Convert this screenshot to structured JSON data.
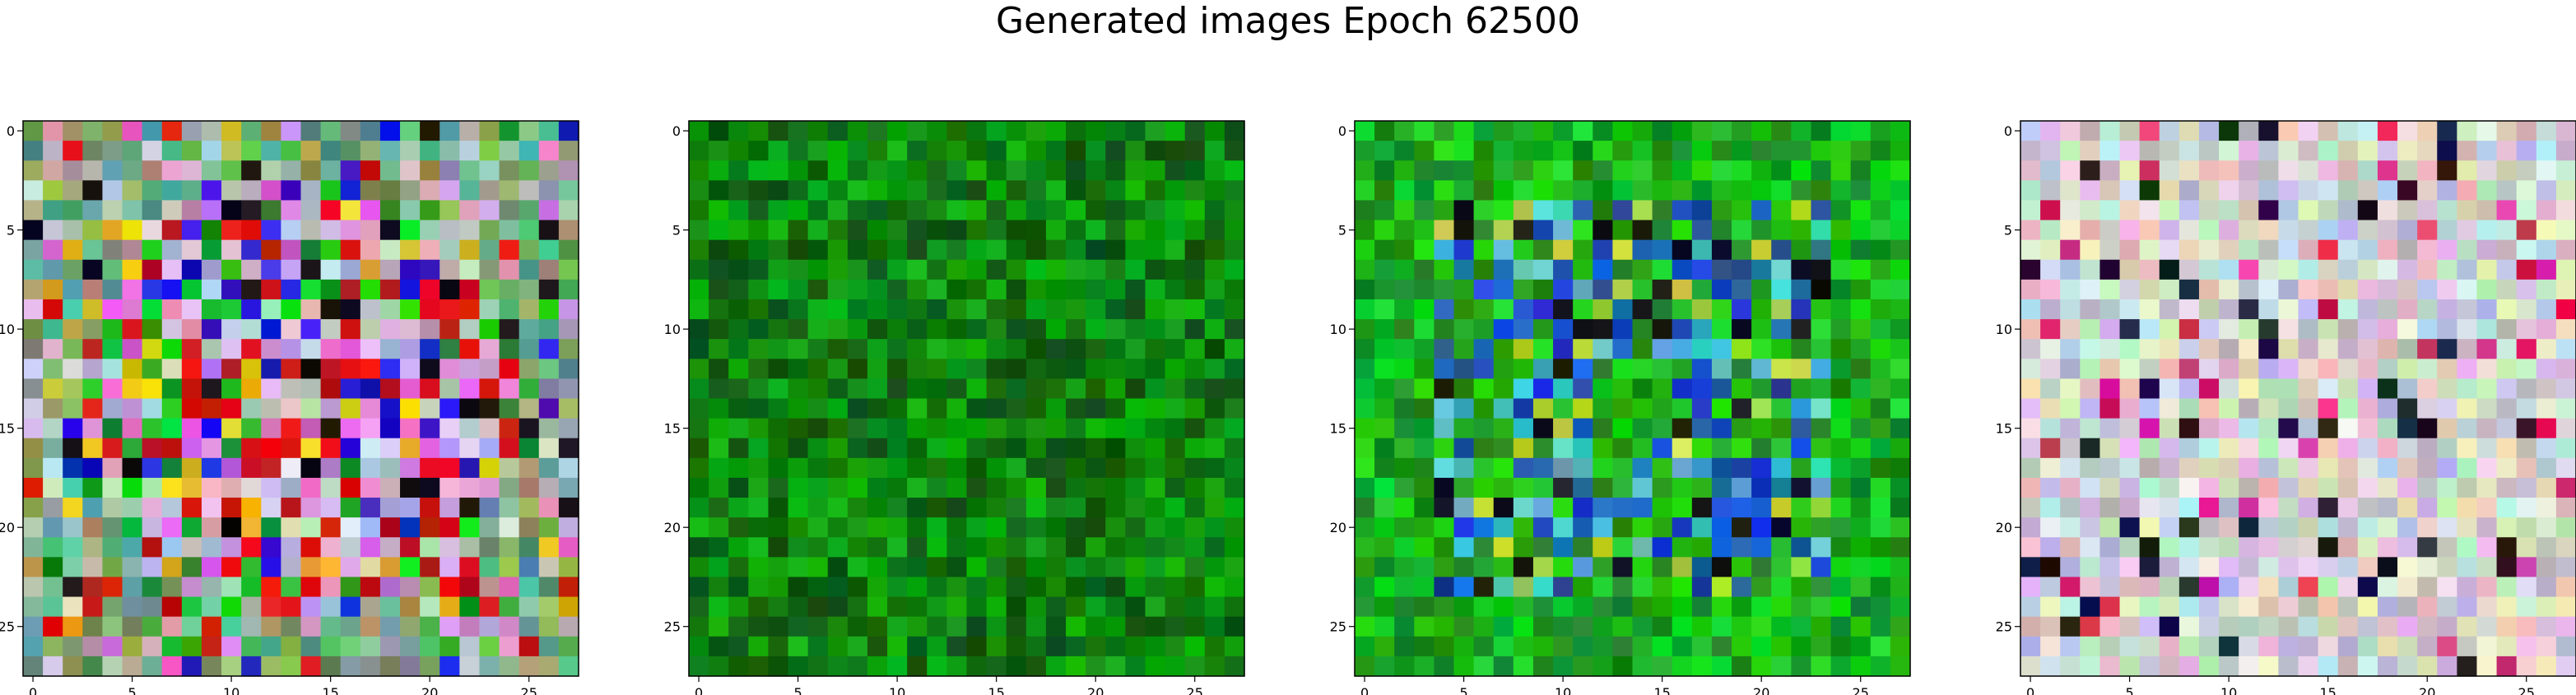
{
  "figure": {
    "title": "Generated images Epoch 62500"
  },
  "chart_data": [
    {
      "type": "heatmap",
      "palette": "multicolor",
      "grid_size": [
        28,
        28
      ],
      "xlim": [
        -0.5,
        27.5
      ],
      "ylim": [
        27.5,
        -0.5
      ],
      "x_ticks": [
        0,
        5,
        10,
        15,
        20,
        25
      ],
      "y_ticks": [
        0,
        5,
        10,
        15,
        20,
        25
      ],
      "x_tick_labels": [
        "0",
        "5",
        "10",
        "15",
        "20",
        "25"
      ],
      "y_tick_labels": [
        "0",
        "5",
        "10",
        "15",
        "20",
        "25"
      ],
      "grid": false
    },
    {
      "type": "heatmap",
      "palette": "green",
      "grid_size": [
        28,
        28
      ],
      "xlim": [
        -0.5,
        27.5
      ],
      "ylim": [
        27.5,
        -0.5
      ],
      "x_ticks": [
        0,
        5,
        10,
        15,
        20,
        25
      ],
      "y_ticks": [
        0,
        5,
        10,
        15,
        20,
        25
      ],
      "x_tick_labels": [
        "0",
        "5",
        "10",
        "15",
        "20",
        "25"
      ],
      "y_tick_labels": [
        "0",
        "5",
        "10",
        "15",
        "20",
        "25"
      ],
      "grid": false
    },
    {
      "type": "heatmap",
      "palette": "green-blue",
      "grid_size": [
        28,
        28
      ],
      "xlim": [
        -0.5,
        27.5
      ],
      "ylim": [
        27.5,
        -0.5
      ],
      "x_ticks": [
        0,
        5,
        10,
        15,
        20,
        25
      ],
      "y_ticks": [
        0,
        5,
        10,
        15,
        20,
        25
      ],
      "x_tick_labels": [
        "0",
        "5",
        "10",
        "15",
        "20",
        "25"
      ],
      "y_tick_labels": [
        "0",
        "5",
        "10",
        "15",
        "20",
        "25"
      ],
      "grid": false
    },
    {
      "type": "heatmap",
      "palette": "pastel",
      "grid_size": [
        28,
        28
      ],
      "xlim": [
        -0.5,
        27.5
      ],
      "ylim": [
        27.5,
        -0.5
      ],
      "x_ticks": [
        0,
        5,
        10,
        15,
        20,
        25
      ],
      "y_ticks": [
        0,
        5,
        10,
        15,
        20,
        25
      ],
      "x_tick_labels": [
        "0",
        "5",
        "10",
        "15",
        "20",
        "25"
      ],
      "y_tick_labels": [
        "0",
        "5",
        "10",
        "15",
        "20",
        "25"
      ],
      "grid": false
    }
  ]
}
